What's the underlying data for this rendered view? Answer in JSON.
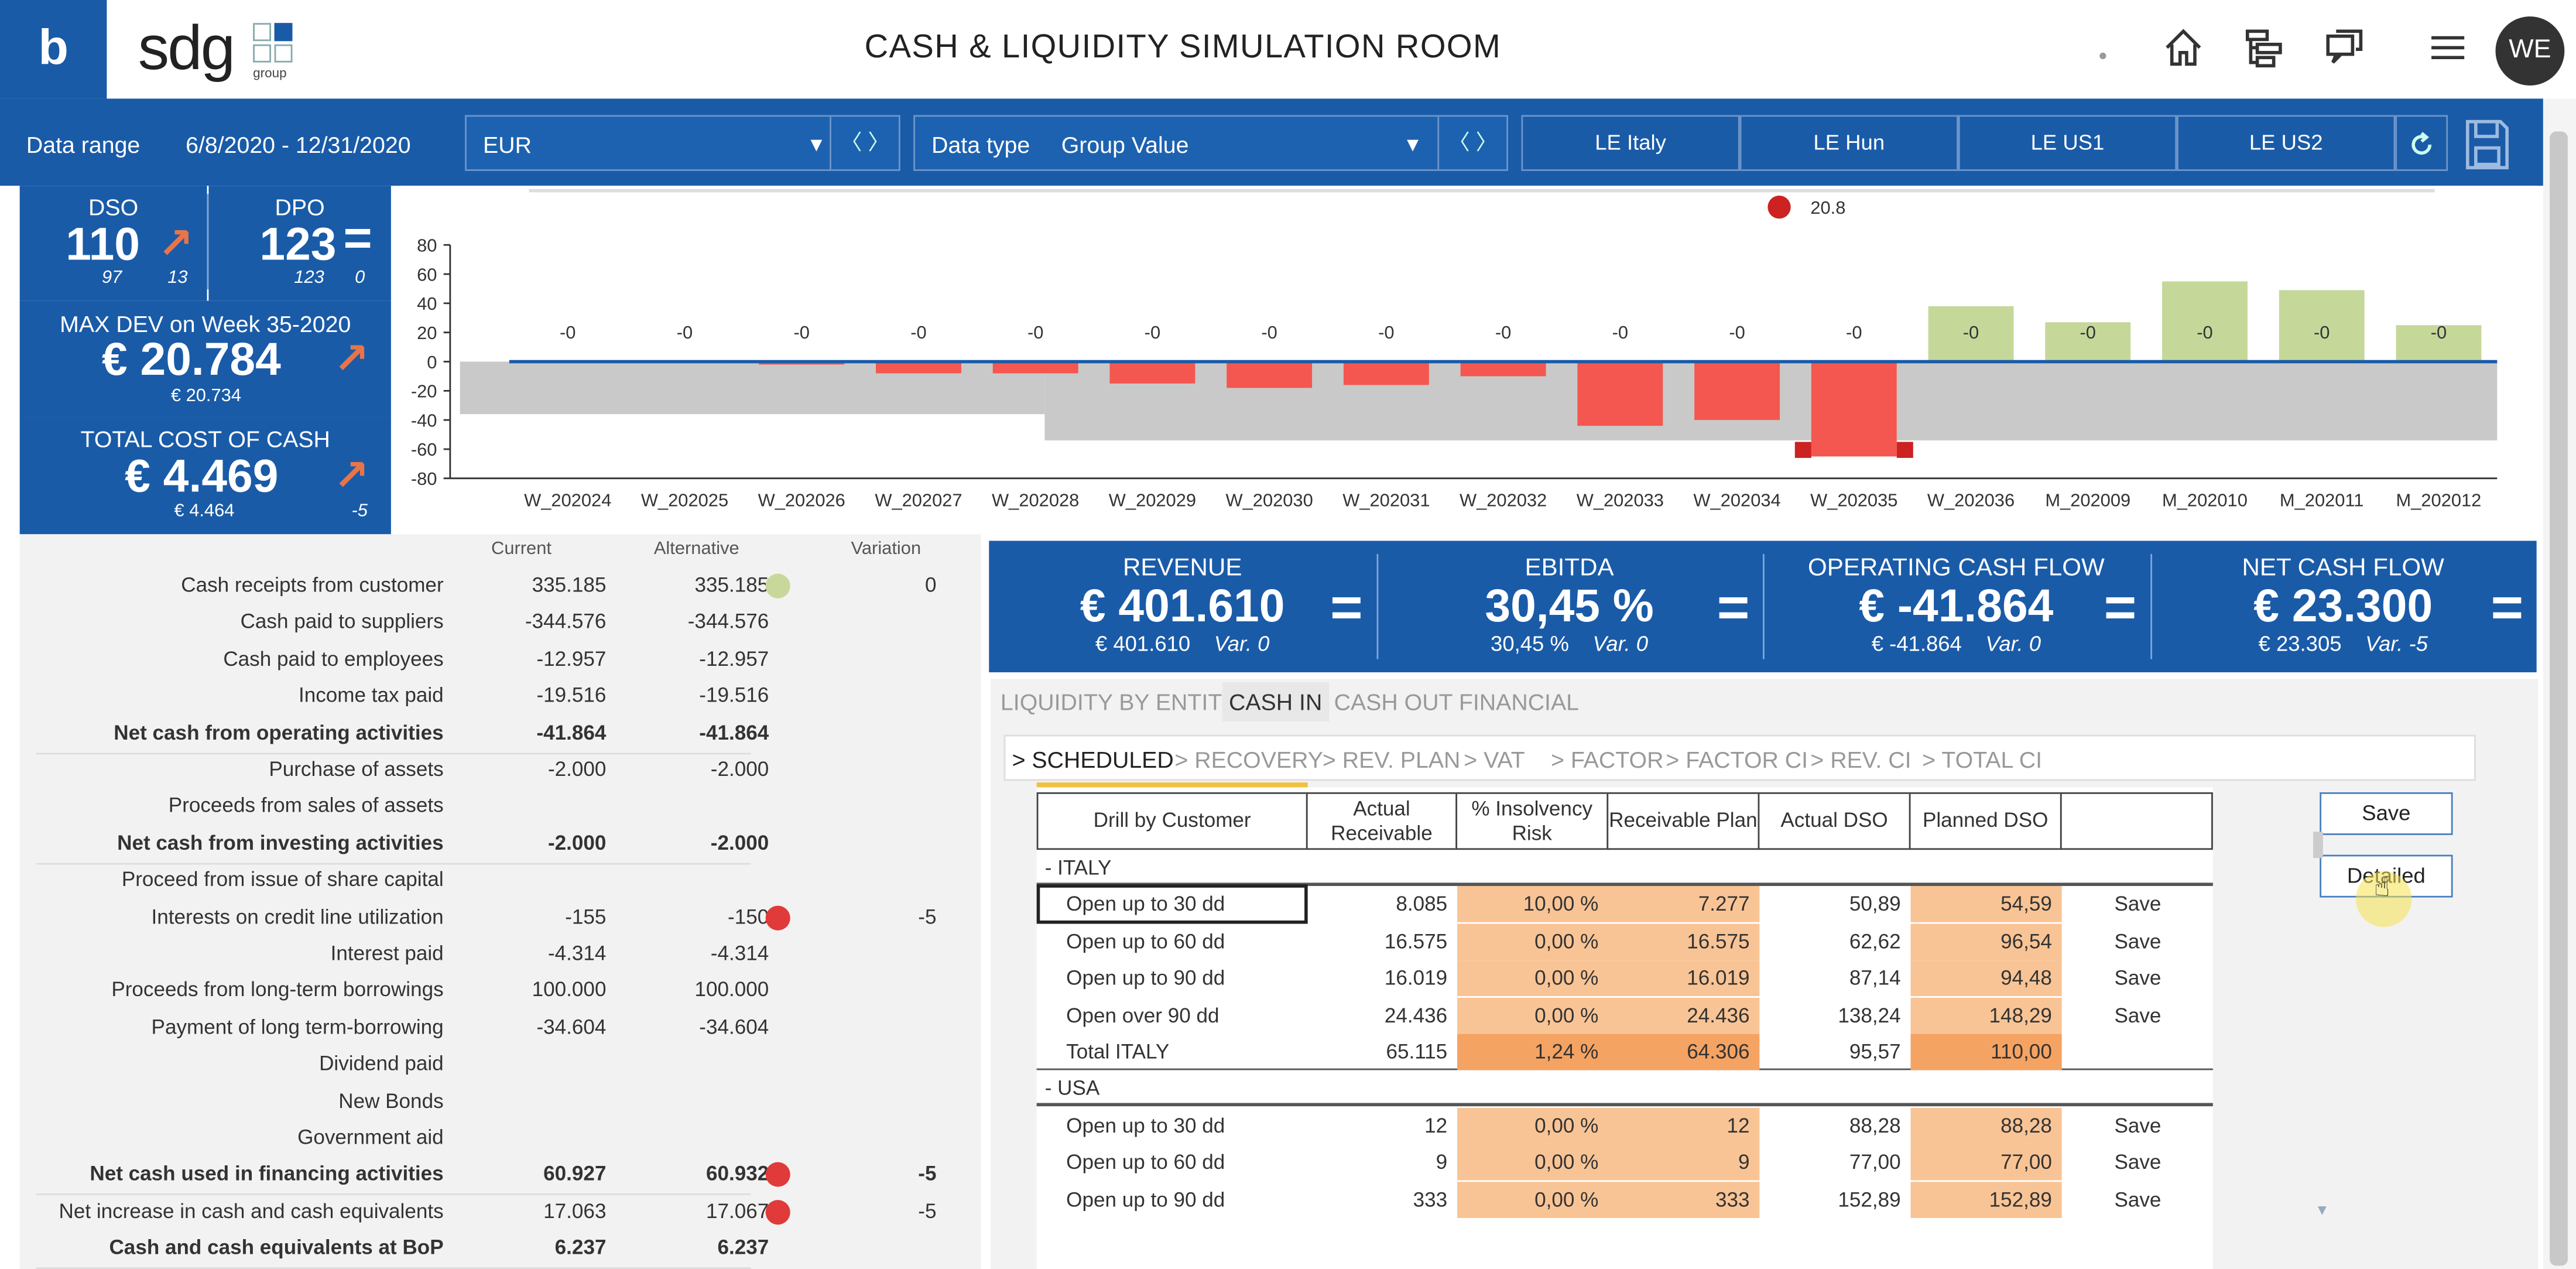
{
  "header": {
    "brand_letter": "b",
    "logo_text": "sdg",
    "logo_sub": "group",
    "title": "CASH & LIQUIDITY SIMULATION ROOM",
    "avatar": "WE",
    "icons": [
      "home-icon",
      "hierarchy-icon",
      "chat-icon",
      "menu-icon"
    ]
  },
  "filters": {
    "data_range_label": "Data range",
    "data_range_value": "6/8/2020 -  12/31/2020",
    "currency": "EUR",
    "data_type_label": "Data type",
    "data_type_value": "Group Value",
    "entities": [
      "LE Italy",
      "LE Hun",
      "LE US1",
      "LE US2"
    ]
  },
  "kpi_left": {
    "dso_label": "DSO",
    "dso_value": "110",
    "dso_sub1": "97",
    "dso_sub2": "13",
    "dpo_label": "DPO",
    "dpo_value": "123",
    "dpo_sub1": "123",
    "dpo_sub2": "0",
    "maxdev_label": "MAX DEV on Week 35-2020",
    "maxdev_value": "€ 20.784",
    "maxdev_sub": "€ 20.734",
    "tcc_label": "TOTAL COST OF CASH",
    "tcc_value": "€ 4.469",
    "tcc_sub1": "€ 4.464",
    "tcc_sub2": "-5"
  },
  "chart_data": {
    "type": "bar",
    "legend_label": "20.8",
    "categories": [
      "W_202024",
      "W_202025",
      "W_202026",
      "W_202027",
      "W_202028",
      "W_202029",
      "W_202030",
      "W_202031",
      "W_202032",
      "W_202033",
      "W_202034",
      "W_202035",
      "W_202036",
      "M_202009",
      "M_202010",
      "M_202011",
      "M_202012"
    ],
    "values": [
      0,
      0,
      -2,
      -8,
      -8,
      -15,
      -18,
      -16,
      -10,
      -44,
      -40,
      -65,
      38,
      27,
      55,
      49,
      25
    ],
    "data_labels": [
      "-0",
      "-0",
      "-0",
      "-0",
      "-0",
      "-0",
      "-0",
      "-0",
      "-0",
      "-0",
      "-0",
      "-0",
      "-0",
      "-0",
      "-0",
      "-0",
      "-0"
    ],
    "yticks": [
      80,
      60,
      40,
      20,
      0,
      -20,
      -40,
      -60,
      -80
    ],
    "ylim": [
      -80,
      80
    ],
    "colors": {
      "neg": "#f4574f",
      "pos": "#c5d89a",
      "band": "#c9c9c9",
      "zero": "#1a5ba8",
      "marker": "#cc2222"
    }
  },
  "cashflow": {
    "headers": [
      "Current",
      "Alternative",
      "Variation"
    ],
    "rows": [
      {
        "label": "Cash receipts from customer",
        "c": "335.185",
        "a": "335.185",
        "dot": "#c8d89a",
        "v": "0",
        "bold": false
      },
      {
        "label": "Cash paid to suppliers",
        "c": "-344.576",
        "a": "-344.576",
        "dot": "",
        "v": "",
        "bold": false
      },
      {
        "label": "Cash paid to employees",
        "c": "-12.957",
        "a": "-12.957",
        "dot": "",
        "v": "",
        "bold": false
      },
      {
        "label": "Income tax paid",
        "c": "-19.516",
        "a": "-19.516",
        "dot": "",
        "v": "",
        "bold": false
      },
      {
        "label": "Net cash from operating activities",
        "c": "-41.864",
        "a": "-41.864",
        "dot": "",
        "v": "",
        "bold": true
      },
      {
        "label": "Purchase of assets",
        "c": "-2.000",
        "a": "-2.000",
        "dot": "",
        "v": "",
        "bold": false
      },
      {
        "label": "Proceeds from sales  of assets",
        "c": "",
        "a": "",
        "dot": "",
        "v": "",
        "bold": false
      },
      {
        "label": "Net cash from investing activities",
        "c": "-2.000",
        "a": "-2.000",
        "dot": "",
        "v": "",
        "bold": true
      },
      {
        "label": "Proceed from issue of share capital",
        "c": "",
        "a": "",
        "dot": "",
        "v": "",
        "bold": false
      },
      {
        "label": "Interests on credit line utilization",
        "c": "-155",
        "a": "-150",
        "dot": "#e03a3a",
        "v": "-5",
        "bold": false
      },
      {
        "label": "Interest paid",
        "c": "-4.314",
        "a": "-4.314",
        "dot": "",
        "v": "",
        "bold": false
      },
      {
        "label": "Proceeds from long-term borrowings",
        "c": "100.000",
        "a": "100.000",
        "dot": "",
        "v": "",
        "bold": false
      },
      {
        "label": "Payment of long term-borrowing",
        "c": "-34.604",
        "a": "-34.604",
        "dot": "",
        "v": "",
        "bold": false
      },
      {
        "label": "Dividend paid",
        "c": "",
        "a": "",
        "dot": "",
        "v": "",
        "bold": false
      },
      {
        "label": "New Bonds",
        "c": "",
        "a": "",
        "dot": "",
        "v": "",
        "bold": false
      },
      {
        "label": "Government aid",
        "c": "",
        "a": "",
        "dot": "",
        "v": "",
        "bold": false
      },
      {
        "label": "Net cash used in financing activities",
        "c": "60.927",
        "a": "60.932",
        "dot": "#e03a3a",
        "v": "-5",
        "bold": true
      },
      {
        "label": "Net increase in cash and cash equivalents",
        "c": "17.063",
        "a": "17.067",
        "dot": "#e03a3a",
        "v": "-5",
        "bold": false
      },
      {
        "label": "Cash and cash equivalents at BoP",
        "c": "6.237",
        "a": "6.237",
        "dot": "",
        "v": "",
        "bold": true
      }
    ]
  },
  "big_kpi": [
    {
      "title": "REVENUE",
      "value": "€ 401.610",
      "sub": "€ 401.610",
      "var": "Var.  0"
    },
    {
      "title": "EBITDA",
      "value": "30,45 %",
      "sub": "30,45 %",
      "var": "Var.  0"
    },
    {
      "title": "OPERATING CASH FLOW",
      "value": "€ -41.864",
      "sub": "€ -41.864",
      "var": "Var.  0"
    },
    {
      "title": "NET CASH FLOW",
      "value": "€ 23.300",
      "sub": "€ 23.305",
      "var": "Var.  -5"
    }
  ],
  "tabs": [
    "LIQUIDITY BY ENTITY",
    "CASH IN",
    "CASH OUT",
    "FINANCIAL"
  ],
  "subtabs": [
    "> SCHEDULED",
    "> RECOVERY",
    "> REV. PLAN",
    "> VAT",
    "> FACTOR",
    "> FACTOR CI",
    "> REV. CI",
    "> TOTAL CI"
  ],
  "detail_table": {
    "headers": [
      "Drill by Customer",
      "Actual Receivable",
      "% Insolvency Risk",
      "Receivable Plan",
      "Actual DSO",
      "Planned DSO"
    ],
    "groups": [
      {
        "name": "-  ITALY",
        "rows": [
          {
            "label": "Open up to 30 dd",
            "ar": "8.085",
            "risk": "10,00 %",
            "plan": "7.277",
            "adso": "50,89",
            "pdso": "54,59",
            "action": "Save",
            "total": false
          },
          {
            "label": "Open up to 60 dd",
            "ar": "16.575",
            "risk": "0,00 %",
            "plan": "16.575",
            "adso": "62,62",
            "pdso": "96,54",
            "action": "Save",
            "total": false
          },
          {
            "label": "Open up to 90 dd",
            "ar": "16.019",
            "risk": "0,00 %",
            "plan": "16.019",
            "adso": "87,14",
            "pdso": "94,48",
            "action": "Save",
            "total": false
          },
          {
            "label": "Open over 90 dd",
            "ar": "24.436",
            "risk": "0,00 %",
            "plan": "24.436",
            "adso": "138,24",
            "pdso": "148,29",
            "action": "Save",
            "total": false
          },
          {
            "label": "Total ITALY",
            "ar": "65.115",
            "risk": "1,24 %",
            "plan": "64.306",
            "adso": "95,57",
            "pdso": "110,00",
            "action": "",
            "total": true
          }
        ]
      },
      {
        "name": "-  USA",
        "rows": [
          {
            "label": "Open up to 30 dd",
            "ar": "12",
            "risk": "0,00 %",
            "plan": "12",
            "adso": "88,28",
            "pdso": "88,28",
            "action": "Save",
            "total": false
          },
          {
            "label": "Open up to 60 dd",
            "ar": "9",
            "risk": "0,00 %",
            "plan": "9",
            "adso": "77,00",
            "pdso": "77,00",
            "action": "Save",
            "total": false
          },
          {
            "label": "Open up to 90 dd",
            "ar": "333",
            "risk": "0,00 %",
            "plan": "333",
            "adso": "152,89",
            "pdso": "152,89",
            "action": "Save",
            "total": false
          }
        ]
      }
    ],
    "buttons": {
      "save": "Save",
      "detailed": "Detailed"
    }
  }
}
